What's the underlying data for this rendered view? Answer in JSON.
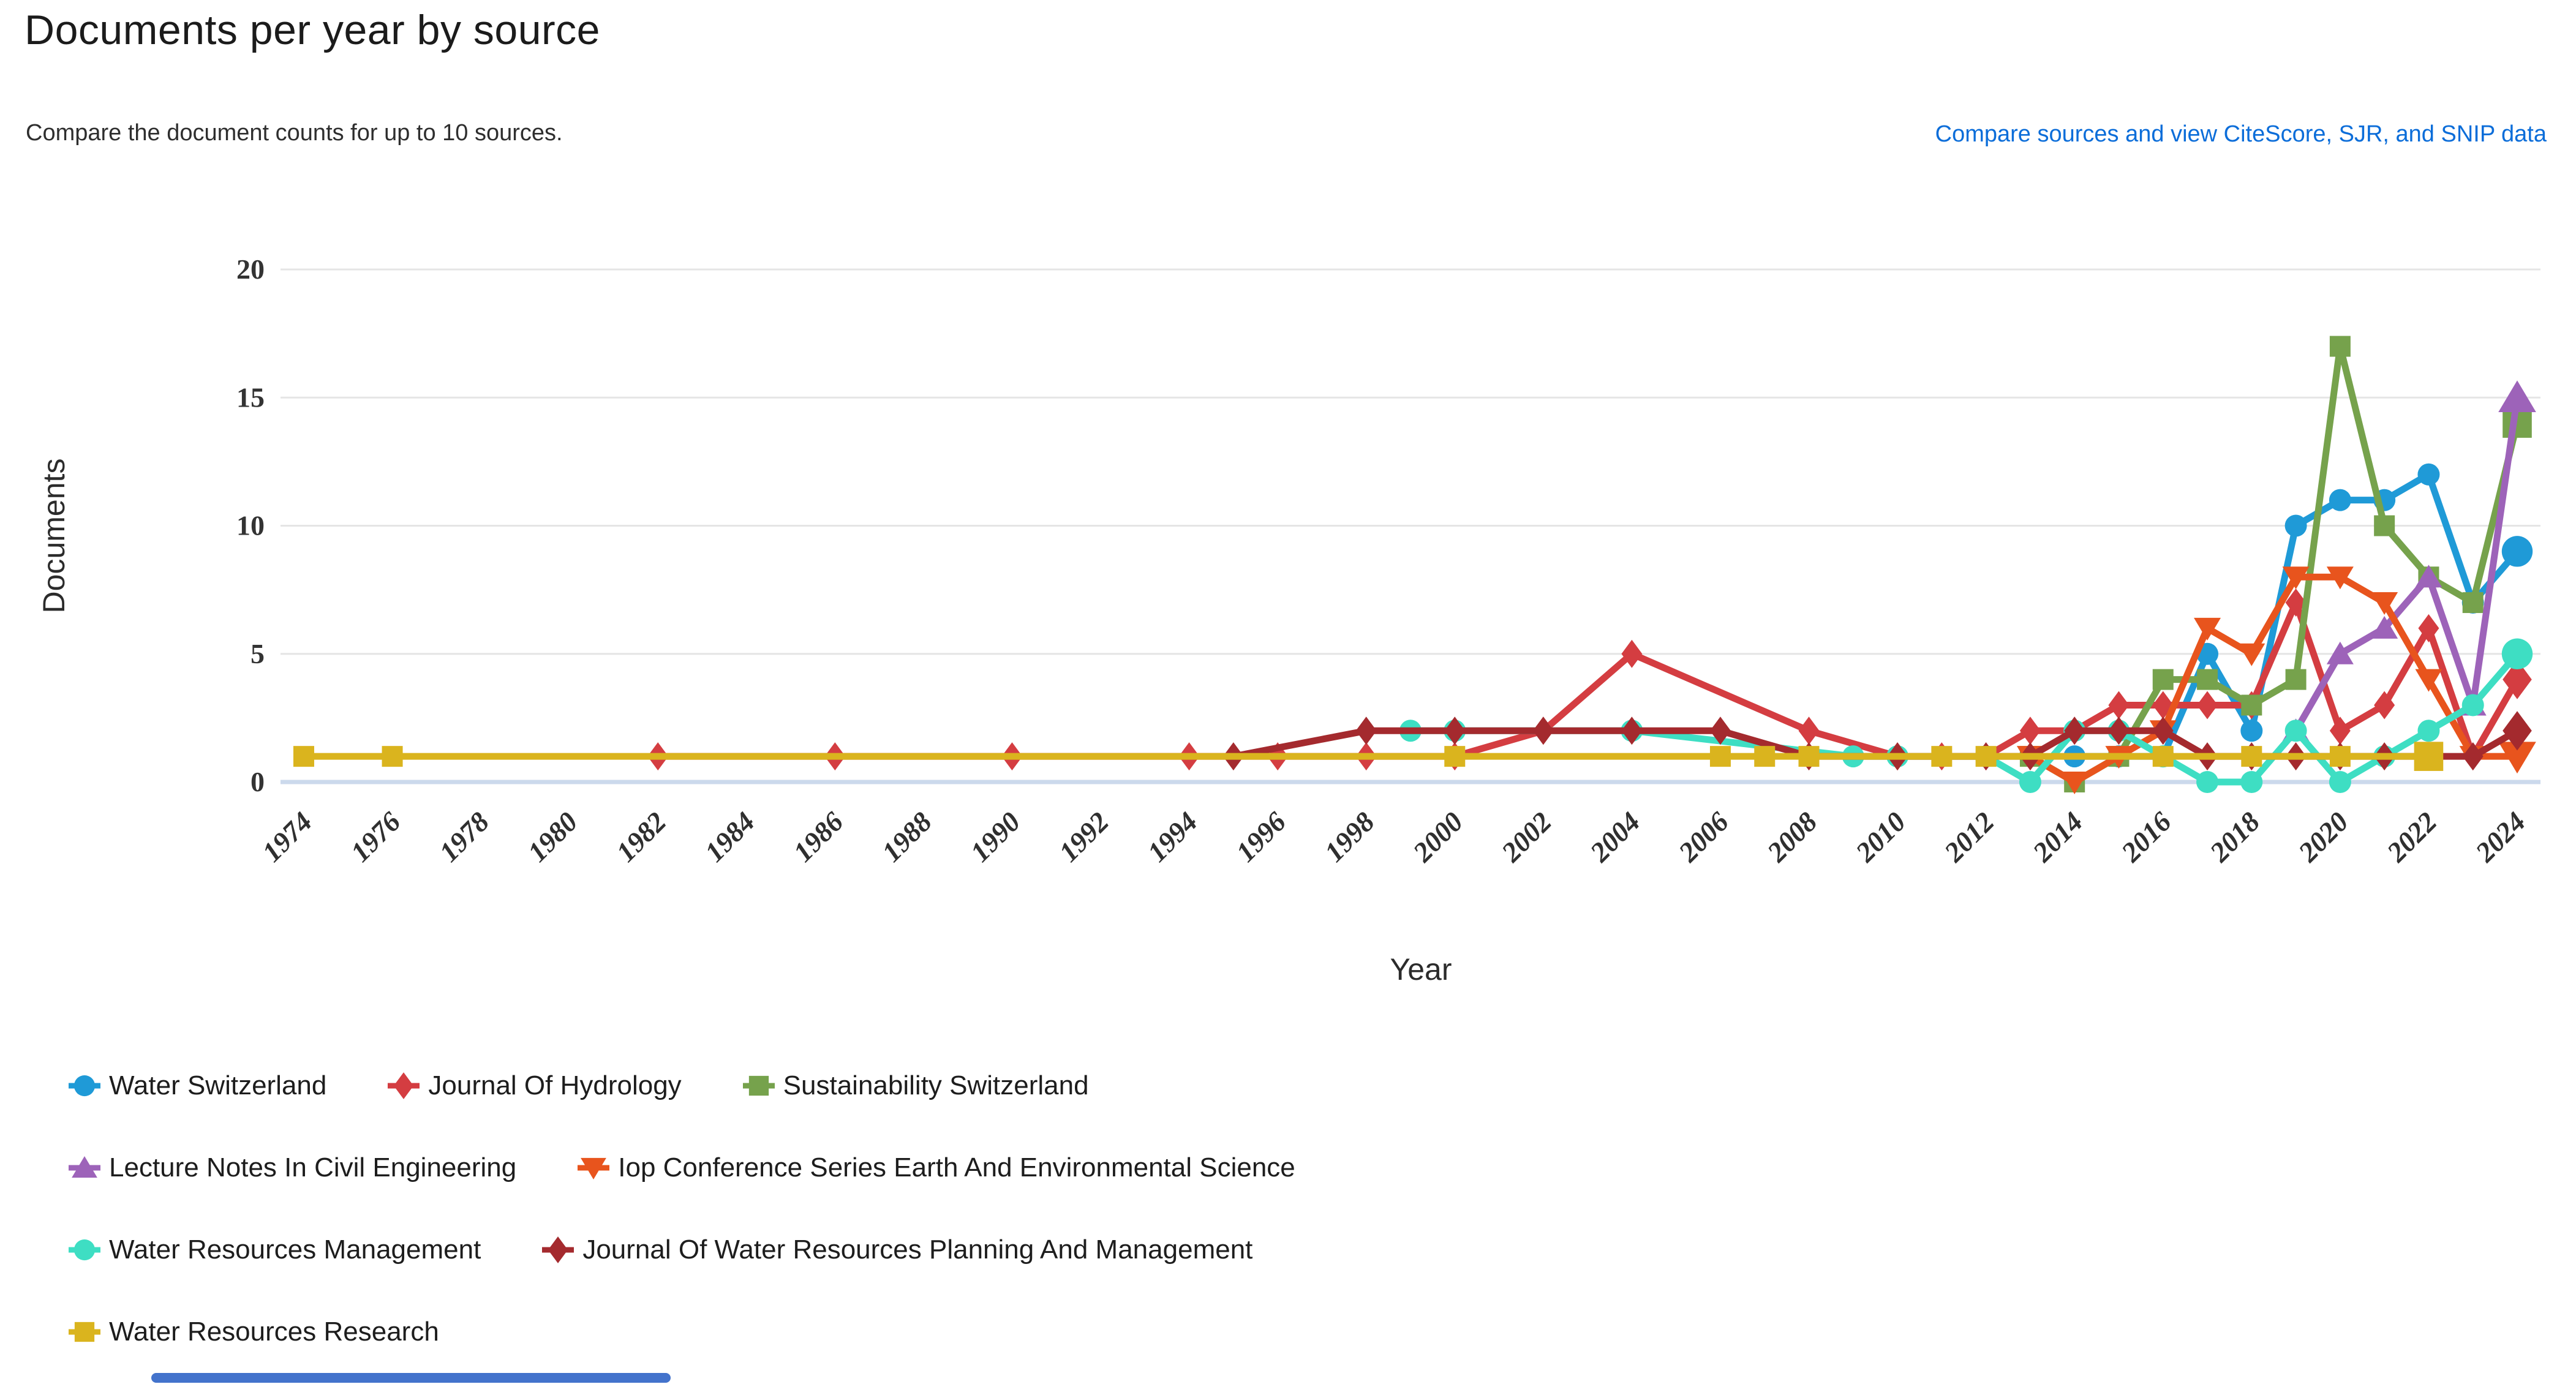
{
  "header": {
    "title": "Documents per year by source",
    "subtitle": "Compare the document counts for up to 10 sources.",
    "link_label": "Compare sources and view CiteScore, SJR, and SNIP data"
  },
  "colors": {
    "link_blue": "#0b6dd9",
    "grid_line": "#e5e5e5",
    "zero_axis": "#ccd9ec",
    "tick_text": "#333333",
    "scroll_thumb": "#4373cc"
  },
  "chart_data": {
    "type": "line",
    "title": "Documents per year by source",
    "xlabel": "Year",
    "ylabel": "Documents",
    "ylim": [
      0,
      20
    ],
    "xlim": [
      1974,
      2024
    ],
    "y_ticks": [
      0,
      5,
      10,
      15,
      20
    ],
    "x_ticks": [
      1974,
      1976,
      1978,
      1980,
      1982,
      1984,
      1986,
      1988,
      1990,
      1992,
      1994,
      1996,
      1998,
      2000,
      2002,
      2004,
      2006,
      2008,
      2010,
      2012,
      2014,
      2016,
      2018,
      2020,
      2022,
      2024
    ],
    "grid": "horizontal",
    "legend_position": "bottom",
    "series": [
      {
        "name": "Water Switzerland",
        "color": "#1f9ad7",
        "marker": "circle",
        "points": [
          [
            2014,
            1
          ],
          [
            2015,
            1
          ],
          [
            2016,
            1
          ],
          [
            2017,
            5
          ],
          [
            2018,
            2
          ],
          [
            2019,
            10
          ],
          [
            2020,
            11
          ],
          [
            2021,
            11
          ],
          [
            2022,
            12
          ],
          [
            2023,
            7
          ],
          [
            2024,
            9
          ]
        ]
      },
      {
        "name": "Journal Of Hydrology",
        "color": "#d43d41",
        "marker": "diamond",
        "points": [
          [
            1982,
            1
          ],
          [
            1986,
            1
          ],
          [
            1990,
            1
          ],
          [
            1994,
            1
          ],
          [
            1996,
            1
          ],
          [
            1998,
            1
          ],
          [
            2000,
            1
          ],
          [
            2002,
            2
          ],
          [
            2004,
            5
          ],
          [
            2008,
            2
          ],
          [
            2010,
            1
          ],
          [
            2011,
            1
          ],
          [
            2012,
            1
          ],
          [
            2013,
            2
          ],
          [
            2014,
            2
          ],
          [
            2015,
            3
          ],
          [
            2016,
            3
          ],
          [
            2017,
            3
          ],
          [
            2018,
            3
          ],
          [
            2019,
            7
          ],
          [
            2020,
            2
          ],
          [
            2021,
            3
          ],
          [
            2022,
            6
          ],
          [
            2023,
            1
          ],
          [
            2024,
            4
          ]
        ]
      },
      {
        "name": "Sustainability Switzerland",
        "color": "#76a24c",
        "marker": "square",
        "points": [
          [
            2013,
            1
          ],
          [
            2014,
            0
          ],
          [
            2015,
            1
          ],
          [
            2016,
            4
          ],
          [
            2017,
            4
          ],
          [
            2018,
            3
          ],
          [
            2019,
            4
          ],
          [
            2020,
            17
          ],
          [
            2021,
            10
          ],
          [
            2022,
            8
          ],
          [
            2023,
            7
          ],
          [
            2024,
            14
          ]
        ]
      },
      {
        "name": "Lecture Notes In Civil Engineering",
        "color": "#9d63b9",
        "marker": "triangle-up",
        "points": [
          [
            2019,
            2
          ],
          [
            2020,
            5
          ],
          [
            2021,
            6
          ],
          [
            2022,
            8
          ],
          [
            2023,
            3
          ],
          [
            2024,
            15
          ]
        ]
      },
      {
        "name": "Iop Conference Series Earth And Environmental Science",
        "color": "#e8541d",
        "marker": "triangle-down",
        "points": [
          [
            2013,
            1
          ],
          [
            2014,
            0
          ],
          [
            2015,
            1
          ],
          [
            2016,
            2
          ],
          [
            2017,
            6
          ],
          [
            2018,
            5
          ],
          [
            2019,
            8
          ],
          [
            2020,
            8
          ],
          [
            2021,
            7
          ],
          [
            2022,
            4
          ],
          [
            2023,
            1
          ],
          [
            2024,
            1
          ]
        ]
      },
      {
        "name": "Water Resources Management",
        "color": "#3edec3",
        "marker": "circle",
        "points": [
          [
            1999,
            2
          ],
          [
            2000,
            2
          ],
          [
            2004,
            2
          ],
          [
            2009,
            1
          ],
          [
            2010,
            1
          ],
          [
            2012,
            1
          ],
          [
            2013,
            0
          ],
          [
            2014,
            2
          ],
          [
            2015,
            2
          ],
          [
            2016,
            1
          ],
          [
            2017,
            0
          ],
          [
            2018,
            0
          ],
          [
            2019,
            2
          ],
          [
            2020,
            0
          ],
          [
            2021,
            1
          ],
          [
            2022,
            2
          ],
          [
            2023,
            3
          ],
          [
            2024,
            5
          ]
        ]
      },
      {
        "name": "Journal Of Water Resources Planning And Management",
        "color": "#a42a2e",
        "marker": "diamond",
        "points": [
          [
            1995,
            1
          ],
          [
            1998,
            2
          ],
          [
            2000,
            2
          ],
          [
            2002,
            2
          ],
          [
            2004,
            2
          ],
          [
            2006,
            2
          ],
          [
            2008,
            1
          ],
          [
            2010,
            1
          ],
          [
            2012,
            1
          ],
          [
            2013,
            1
          ],
          [
            2014,
            2
          ],
          [
            2015,
            2
          ],
          [
            2016,
            2
          ],
          [
            2017,
            1
          ],
          [
            2018,
            1
          ],
          [
            2019,
            1
          ],
          [
            2020,
            1
          ],
          [
            2021,
            1
          ],
          [
            2022,
            1
          ],
          [
            2023,
            1
          ],
          [
            2024,
            2
          ]
        ]
      },
      {
        "name": "Water Resources Research",
        "color": "#dab41e",
        "marker": "square",
        "points": [
          [
            1974,
            1
          ],
          [
            1976,
            1
          ],
          [
            2000,
            1
          ],
          [
            2006,
            1
          ],
          [
            2007,
            1
          ],
          [
            2008,
            1
          ],
          [
            2011,
            1
          ],
          [
            2012,
            1
          ],
          [
            2016,
            1
          ],
          [
            2018,
            1
          ],
          [
            2020,
            1
          ],
          [
            2022,
            1
          ]
        ]
      }
    ]
  },
  "legend": {
    "rows": [
      [
        0,
        1,
        2
      ],
      [
        3,
        4
      ],
      [
        5,
        6
      ],
      [
        7
      ]
    ]
  }
}
